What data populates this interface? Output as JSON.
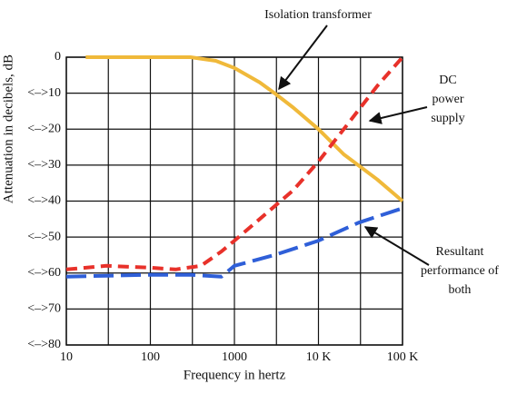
{
  "chart_data": {
    "type": "line",
    "xlabel": "Frequency in hertz",
    "ylabel": "Attenuation in decibels, dB",
    "xscale": "log",
    "xlim": [
      10,
      100000
    ],
    "xticks": [
      10,
      100,
      1000,
      {
        "value": 10000,
        "label": "10 K"
      },
      {
        "value": 100000,
        "label": "100 K"
      }
    ],
    "xminor": [
      31.62,
      316.2,
      3162,
      31623
    ],
    "ylim": [
      -80,
      0
    ],
    "yticks": [
      {
        "value": -80,
        "label": "<–>80"
      },
      {
        "value": -70,
        "label": "<–>70"
      },
      {
        "value": -60,
        "label": "<–>60"
      },
      {
        "value": -50,
        "label": "<–>50"
      },
      {
        "value": -40,
        "label": "<–>40"
      },
      {
        "value": -30,
        "label": "<–>30"
      },
      {
        "value": -20,
        "label": "<–>20"
      },
      {
        "value": -10,
        "label": "<–>10"
      },
      0
    ],
    "grid": true,
    "series": [
      {
        "name": "Isolation transformer",
        "color": "#f0b93a",
        "dash": "solid",
        "x": [
          17,
          100,
          300,
          600,
          1000,
          2000,
          3000,
          5000,
          10000,
          20000,
          50000,
          100000
        ],
        "values": [
          0,
          0,
          0,
          -1,
          -3,
          -7,
          -10,
          -14,
          -20,
          -27,
          -34,
          -40
        ]
      },
      {
        "name": "DC power supply",
        "color": "#e8312a",
        "dash": "short",
        "x": [
          10,
          30,
          100,
          200,
          400,
          700,
          1000,
          2000,
          5000,
          10000,
          20000,
          50000,
          100000
        ],
        "values": [
          -59,
          -58,
          -58.5,
          -59,
          -58,
          -54,
          -51,
          -45,
          -37,
          -29,
          -20,
          -8,
          0
        ]
      },
      {
        "name": "Resultant performance of both",
        "color": "#2f5fd8",
        "dash": "long",
        "x": [
          10,
          100,
          300,
          700,
          1000,
          3000,
          10000,
          30000,
          100000
        ],
        "values": [
          -61,
          -60.5,
          -60.5,
          -61,
          -58,
          -55,
          -51,
          -46,
          -42
        ]
      }
    ]
  }
}
